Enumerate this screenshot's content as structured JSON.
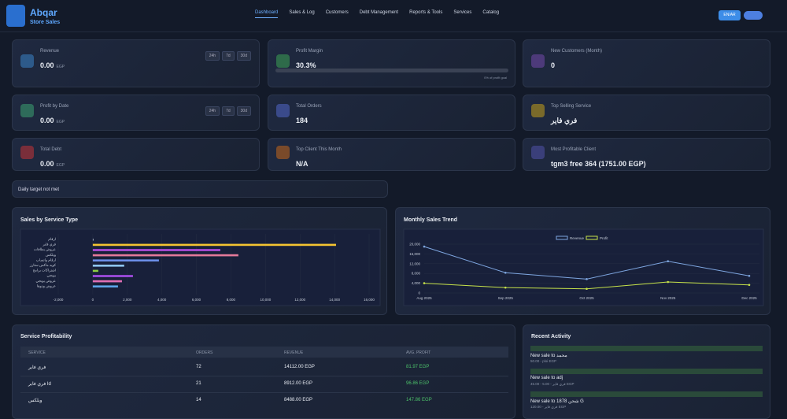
{
  "nav": {
    "brand": "Abqar",
    "brand_sub": "Store Sales",
    "links": [
      "Dashboard",
      "Sales & Log",
      "Customers",
      "Debt Management",
      "Reports & Tools",
      "Services",
      "Catalog"
    ],
    "lang_button": "EN/AR"
  },
  "cards": [
    {
      "label": "Revenue",
      "value": "0.00",
      "unit": "EGP",
      "ranges": [
        "24h",
        "7d",
        "30d"
      ]
    },
    {
      "label": "Profit Margin",
      "value": "30.3%",
      "note": "0% of profit goal"
    },
    {
      "label": "New Customers (Month)",
      "value": "0"
    },
    {
      "label": "Profit by Date",
      "value": "0.00",
      "unit": "EGP",
      "ranges": [
        "24h",
        "7d",
        "30d"
      ]
    },
    {
      "label": "Total Orders",
      "value": "184"
    },
    {
      "label": "Top Selling Service",
      "value": "فري فاير"
    },
    {
      "label": "Total Debt",
      "value": "0.00",
      "unit": "EGP"
    },
    {
      "label": "Top Client This Month",
      "value": "N/A"
    },
    {
      "label": "Most Profitable Client",
      "value": "tgm3 free 364 (1751.00 EGP)"
    }
  ],
  "daily_target": "Daily target not met",
  "sales_by_service": {
    "type": "bar",
    "orientation": "horizontal",
    "title": "Sales by Service Type",
    "categories": [
      "ارقام",
      "فري فاير",
      "عروض بطاقات",
      "ويلكس",
      "ارقام واتساب",
      "كويد ماكس ستارز",
      "اشتراكات برامج",
      "بوبجي",
      "عروض بوبجي",
      "عروض ودوها"
    ],
    "values": [
      50,
      14085,
      7385,
      8430,
      3830,
      1820,
      320,
      2325,
      1690,
      1460
    ],
    "colors": [
      "#8a93a6",
      "#f5c431",
      "#b44de0",
      "#e57a9a",
      "#6c8ee8",
      "#8fc6f0",
      "#8ccf3f",
      "#a64ee8",
      "#e06fb5",
      "#5ca5e8"
    ],
    "xlim": [
      -2000,
      16000
    ],
    "xticks": [
      {
        "value": -2000,
        "label": "-2,000"
      },
      0,
      {
        "value": 2000,
        "label": "2,000"
      },
      {
        "value": 4000,
        "label": "4,000"
      },
      {
        "value": 6000,
        "label": "6,000"
      },
      {
        "value": 8000,
        "label": "8,000"
      },
      {
        "value": 10000,
        "label": "10,000"
      },
      {
        "value": 12000,
        "label": "12,000"
      },
      {
        "value": 14000,
        "label": "14,000"
      },
      {
        "value": 16000,
        "label": "16,000"
      }
    ],
    "grid": true
  },
  "monthly_trend": {
    "type": "line",
    "title": "Monthly Sales Trend",
    "categories": [
      "Aug 2025",
      "Sep 2025",
      "Oct 2025",
      "Nov 2025",
      "Dec 2025"
    ],
    "series": [
      {
        "name": "Revenue",
        "color": "#7ea6e0",
        "values": [
          19000,
          8300,
          5700,
          13000,
          7000
        ]
      },
      {
        "name": "Profit",
        "color": "#c7e34a",
        "values": [
          4000,
          2200,
          1700,
          4500,
          3300
        ]
      }
    ],
    "ylim": [
      0,
      24000
    ],
    "yticks": [
      0,
      {
        "value": 4000,
        "label": "4,000"
      },
      {
        "value": 8000,
        "label": "8,000"
      },
      {
        "value": 12000,
        "label": "12,000"
      },
      {
        "value": 16000,
        "label": "16,000"
      },
      {
        "value": 20000,
        "label": "20,000"
      }
    ],
    "grid": true,
    "legend": "top"
  },
  "table": {
    "title": "Service Profitability",
    "header": [
      "SERVICE",
      "ORDERS",
      "REVENUE",
      "AVG. PROFIT"
    ],
    "rows": [
      [
        "فري فاير",
        "72",
        "14112.00 EGP",
        "81.97 EGP"
      ],
      [
        "فري فاير Id",
        "21",
        "8912.00 EGP",
        "96.86 EGP"
      ],
      [
        "ويلكس",
        "14",
        "8488.00 EGP",
        "147.86 EGP"
      ]
    ]
  },
  "activity": {
    "title": "Recent Activity",
    "items": [
      {
        "title": "New sale to محمد",
        "detail": "50.00 - ploi EGP"
      },
      {
        "title": "New sale to adj",
        "detail": "45.00 - فري فاير - 5.00 EGP"
      },
      {
        "title": "New sale to 1878 شحن G",
        "detail": "120.00 - فري فاير EGP"
      }
    ]
  }
}
